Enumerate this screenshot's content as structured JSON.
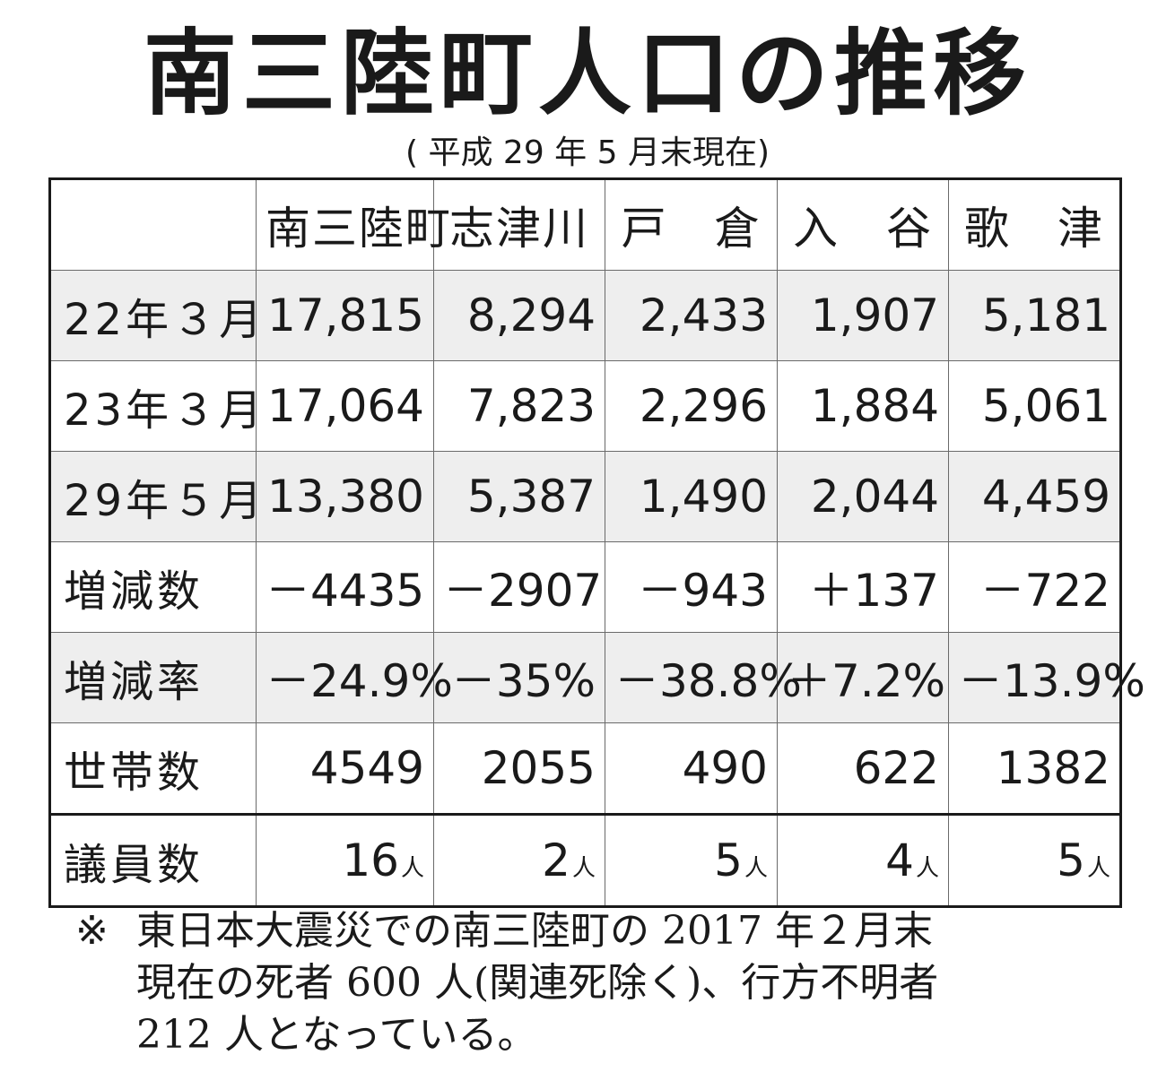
{
  "title": "南三陸町人口の推移",
  "subtitle": "( 平成 29 年 5 月末現在)",
  "table": {
    "headers": [
      "",
      "南三陸町",
      "志津川",
      "戸　倉",
      "入　谷",
      "歌　津"
    ],
    "rows": [
      {
        "label": "22年３月",
        "cells": [
          "17,815",
          "8,294",
          "2,433",
          "1,907",
          "5,181"
        ]
      },
      {
        "label": "23年３月",
        "cells": [
          "17,064",
          "7,823",
          "2,296",
          "1,884",
          "5,061"
        ]
      },
      {
        "label": "29年５月",
        "cells": [
          "13,380",
          "5,387",
          "1,490",
          "2,044",
          "4,459"
        ]
      },
      {
        "label": "増減数",
        "cells": [
          "－4435",
          "－2907",
          "－943",
          "＋137",
          "－722"
        ]
      },
      {
        "label": "増減率",
        "cells": [
          "－24.9%",
          "－35%",
          "－38.8%",
          "＋7.2%",
          "－13.9%"
        ]
      },
      {
        "label": "世帯数",
        "cells": [
          "4549",
          "2055",
          "490",
          "622",
          "1382"
        ]
      },
      {
        "label": "議員数",
        "cells": [
          "16",
          "2",
          "5",
          "4",
          "5"
        ],
        "unit": "人"
      }
    ]
  },
  "note": {
    "mark": "※",
    "lines": [
      "東日本大震災での南三陸町の 2017 年２月末",
      "現在の死者 600 人(関連死除く)、行方不明者",
      "212 人となっている。"
    ]
  }
}
